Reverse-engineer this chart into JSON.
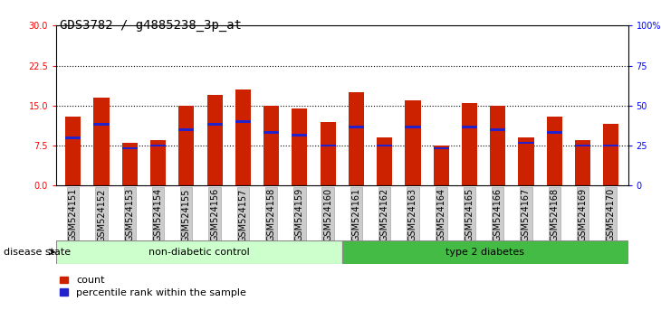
{
  "title": "GDS3782 / g4885238_3p_at",
  "samples": [
    "GSM524151",
    "GSM524152",
    "GSM524153",
    "GSM524154",
    "GSM524155",
    "GSM524156",
    "GSM524157",
    "GSM524158",
    "GSM524159",
    "GSM524160",
    "GSM524161",
    "GSM524162",
    "GSM524163",
    "GSM524164",
    "GSM524165",
    "GSM524166",
    "GSM524167",
    "GSM524168",
    "GSM524169",
    "GSM524170"
  ],
  "count_values": [
    13.0,
    16.5,
    8.0,
    8.5,
    15.0,
    17.0,
    18.0,
    15.0,
    14.5,
    12.0,
    17.5,
    9.0,
    16.0,
    7.5,
    15.5,
    15.0,
    9.0,
    13.0,
    8.5,
    11.5
  ],
  "percentile_values": [
    9.0,
    11.5,
    7.0,
    7.5,
    10.5,
    11.5,
    12.0,
    10.0,
    9.5,
    7.5,
    11.0,
    7.5,
    11.0,
    7.0,
    11.0,
    10.5,
    8.0,
    10.0,
    7.5,
    7.5
  ],
  "bar_color": "#CC2200",
  "blue_color": "#2222CC",
  "non_diabetic_count": 10,
  "type2_count": 10,
  "non_diabetic_label": "non-diabetic control",
  "type2_label": "type 2 diabetes",
  "non_diabetic_color": "#CCFFCC",
  "type2_color": "#44BB44",
  "disease_state_label": "disease state",
  "left_yticks": [
    0,
    7.5,
    15,
    22.5,
    30
  ],
  "right_yticks": [
    0,
    25,
    50,
    75,
    100
  ],
  "right_yticklabels": [
    "0",
    "25",
    "50",
    "75",
    "100%"
  ],
  "ylim": [
    0,
    30
  ],
  "grid_values": [
    7.5,
    15.0,
    22.5
  ],
  "bar_width": 0.55,
  "legend_count_label": "count",
  "legend_pct_label": "percentile rank within the sample",
  "title_fontsize": 10,
  "tick_fontsize": 7,
  "label_fontsize": 8,
  "blue_bar_height": 0.45
}
